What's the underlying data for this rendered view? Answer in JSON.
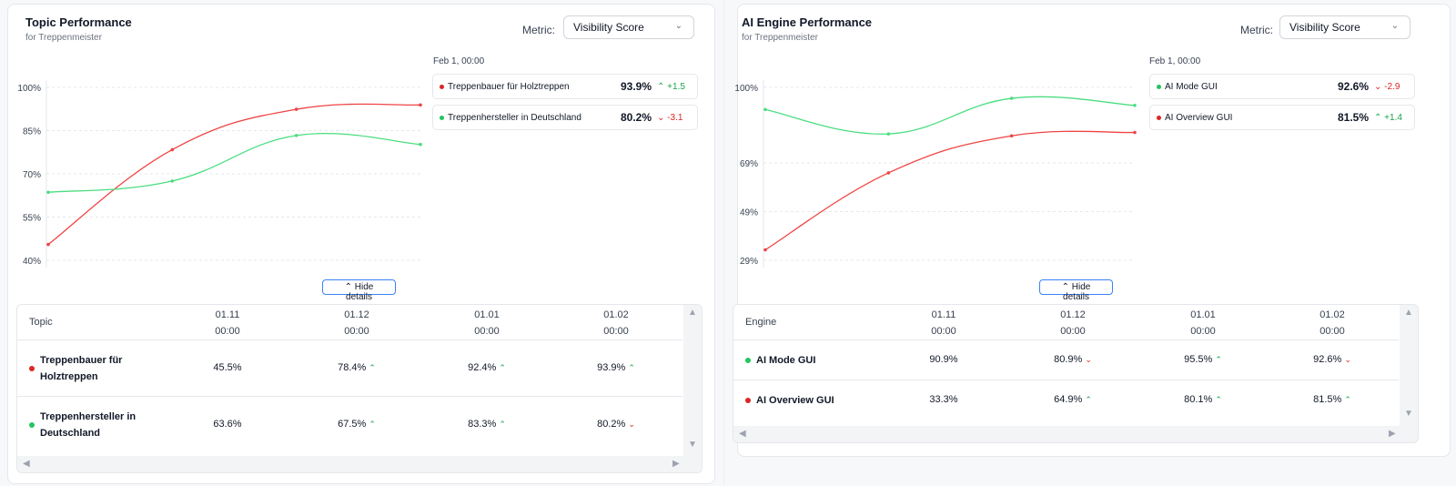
{
  "topic_panel": {
    "title": "Topic Performance",
    "subtitle": "for Treppenmeister",
    "metric_label": "Metric:",
    "metric_value": "Visibility Score",
    "hide_details_label": "Hide details",
    "tooltip": {
      "date": "Feb 1, 00:00",
      "rows": [
        {
          "name": "Treppenbauer für Holztreppen",
          "value": "93.9%",
          "delta": "+1.5",
          "direction": "up",
          "color": "#dc2626"
        },
        {
          "name": "Treppenhersteller in Deutschland",
          "value": "80.2%",
          "delta": "-3.1",
          "direction": "down",
          "color": "#22c55e"
        }
      ]
    },
    "table": {
      "first_header": "Topic",
      "columns": [
        {
          "date": "01.11",
          "time": "00:00"
        },
        {
          "date": "01.12",
          "time": "00:00"
        },
        {
          "date": "01.01",
          "time": "00:00"
        },
        {
          "date": "01.02",
          "time": "00:00"
        }
      ],
      "rows": [
        {
          "name_line1": "Treppenbauer für",
          "name_line2": "Holztreppen",
          "color": "#dc2626",
          "cells": [
            {
              "v": "45.5%",
              "a": ""
            },
            {
              "v": "78.4%",
              "a": "up"
            },
            {
              "v": "92.4%",
              "a": "up"
            },
            {
              "v": "93.9%",
              "a": "up"
            }
          ]
        },
        {
          "name_line1": "Treppenhersteller in",
          "name_line2": "Deutschland",
          "color": "#22c55e",
          "cells": [
            {
              "v": "63.6%",
              "a": ""
            },
            {
              "v": "67.5%",
              "a": "up"
            },
            {
              "v": "83.3%",
              "a": "up"
            },
            {
              "v": "80.2%",
              "a": "down"
            }
          ]
        }
      ]
    }
  },
  "engine_panel": {
    "title": "AI Engine Performance",
    "subtitle": "for Treppenmeister",
    "metric_label": "Metric:",
    "metric_value": "Visibility Score",
    "hide_details_label": "Hide details",
    "tooltip": {
      "date": "Feb 1, 00:00",
      "rows": [
        {
          "name": "AI Mode GUI",
          "value": "92.6%",
          "delta": "-2.9",
          "direction": "down",
          "color": "#22c55e"
        },
        {
          "name": "AI Overview GUI",
          "value": "81.5%",
          "delta": "+1.4",
          "direction": "up",
          "color": "#dc2626"
        }
      ]
    },
    "table": {
      "first_header": "Engine",
      "columns": [
        {
          "date": "01.11",
          "time": "00:00"
        },
        {
          "date": "01.12",
          "time": "00:00"
        },
        {
          "date": "01.01",
          "time": "00:00"
        },
        {
          "date": "01.02",
          "time": "00:00"
        }
      ],
      "rows": [
        {
          "name": "AI Mode GUI",
          "color": "#22c55e",
          "cells": [
            {
              "v": "90.9%",
              "a": ""
            },
            {
              "v": "80.9%",
              "a": "down"
            },
            {
              "v": "95.5%",
              "a": "up"
            },
            {
              "v": "92.6%",
              "a": "down"
            }
          ]
        },
        {
          "name": "AI Overview GUI",
          "color": "#dc2626",
          "cells": [
            {
              "v": "33.3%",
              "a": ""
            },
            {
              "v": "64.9%",
              "a": "up"
            },
            {
              "v": "80.1%",
              "a": "up"
            },
            {
              "v": "81.5%",
              "a": "up"
            }
          ]
        }
      ]
    }
  },
  "chart_data": [
    {
      "type": "line",
      "title": "Topic Performance",
      "x": [
        "01.11",
        "01.12",
        "01.01",
        "01.02"
      ],
      "yticks": [
        "100%",
        "85%",
        "70%",
        "55%",
        "40%"
      ],
      "ytick_values": [
        100,
        85,
        70,
        55,
        40
      ],
      "ylim": [
        40,
        100
      ],
      "series": [
        {
          "name": "Treppenbauer für Holztreppen",
          "color": "#ef4444",
          "values": [
            45.5,
            78.4,
            92.4,
            93.9
          ]
        },
        {
          "name": "Treppenhersteller in Deutschland",
          "color": "#4ade80",
          "values": [
            63.6,
            67.5,
            83.3,
            80.2
          ]
        }
      ]
    },
    {
      "type": "line",
      "title": "AI Engine Performance",
      "x": [
        "01.11",
        "01.12",
        "01.01",
        "01.02"
      ],
      "yticks": [
        "100%",
        "69%",
        "49%",
        "29%"
      ],
      "ytick_values": [
        100,
        69,
        49,
        29
      ],
      "ylim": [
        29,
        100
      ],
      "series": [
        {
          "name": "AI Mode GUI",
          "color": "#4ade80",
          "values": [
            90.9,
            80.9,
            95.5,
            92.6
          ]
        },
        {
          "name": "AI Overview GUI",
          "color": "#ef4444",
          "values": [
            33.3,
            64.9,
            80.1,
            81.5
          ]
        }
      ]
    }
  ]
}
